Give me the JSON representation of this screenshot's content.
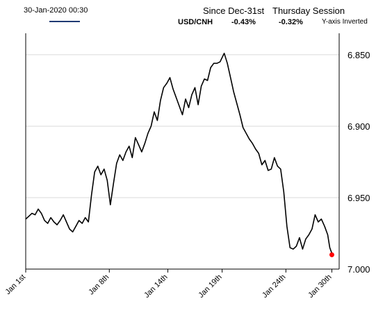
{
  "header": {
    "timestamp": "30-Jan-2020 00:30",
    "since_label": "Since Dec-31st",
    "session_label": "Thursday Session",
    "pair_label": "USD/CNH",
    "since_value": "-0.43%",
    "session_value": "-0.32%",
    "axis_note": "Y-axis Inverted"
  },
  "colors": {
    "line": "#000000",
    "legend_line": "#1f3a73",
    "marker": "#ff0000",
    "grid": "#d9d9d9",
    "axis": "#000000"
  },
  "chart_data": {
    "type": "line",
    "title": "",
    "xlabel": "",
    "ylabel": "",
    "y_inverted": true,
    "ylim": [
      6.835,
      7.0
    ],
    "yticks": [
      6.85,
      6.9,
      6.95,
      7.0
    ],
    "ytick_labels": [
      "6.850",
      "6.900",
      "6.950",
      "7.000"
    ],
    "xlim": [
      0,
      30
    ],
    "xticks": [
      0,
      8,
      13.6,
      18.8,
      24.9,
      29.3
    ],
    "xtick_labels": [
      "Jan 1st",
      "Jan 8th",
      "Jan 14th",
      "Jan 19th",
      "Jan 24th",
      "Jan 30th"
    ],
    "grid": "horizontal",
    "legend": "none",
    "series": [
      {
        "x": [
          0,
          0.3,
          0.6,
          0.9,
          1.2,
          1.5,
          1.8,
          2.1,
          2.4,
          2.7,
          3.0,
          3.3,
          3.6,
          3.9,
          4.2,
          4.5,
          4.8,
          5.1,
          5.4,
          5.7,
          6.0,
          6.3,
          6.6,
          6.9,
          7.2,
          7.5,
          7.8,
          8.1,
          8.4,
          8.7,
          9.0,
          9.3,
          9.6,
          9.9,
          10.2,
          10.5,
          10.8,
          11.1,
          11.4,
          11.7,
          12.0,
          12.3,
          12.6,
          12.9,
          13.2,
          13.5,
          13.8,
          14.1,
          14.4,
          14.7,
          15.0,
          15.3,
          15.6,
          15.9,
          16.2,
          16.5,
          16.8,
          17.1,
          17.4,
          17.7,
          18.0,
          18.3,
          18.6,
          18.8,
          19.0,
          19.3,
          19.6,
          19.9,
          20.2,
          20.5,
          20.8,
          21.1,
          21.4,
          21.7,
          22.0,
          22.3,
          22.6,
          22.9,
          23.2,
          23.5,
          23.8,
          24.1,
          24.4,
          24.7,
          25.0,
          25.3,
          25.6,
          25.9,
          26.2,
          26.5,
          26.8,
          27.1,
          27.4,
          27.7,
          28.0,
          28.3,
          28.6,
          28.9,
          29.1,
          29.3
        ],
        "y": [
          6.965,
          6.963,
          6.961,
          6.962,
          6.958,
          6.961,
          6.966,
          6.968,
          6.964,
          6.967,
          6.969,
          6.966,
          6.962,
          6.967,
          6.972,
          6.974,
          6.97,
          6.966,
          6.968,
          6.964,
          6.967,
          6.948,
          6.932,
          6.928,
          6.934,
          6.93,
          6.938,
          6.955,
          6.94,
          6.926,
          6.92,
          6.924,
          6.918,
          6.914,
          6.922,
          6.908,
          6.913,
          6.918,
          6.912,
          6.905,
          6.9,
          6.89,
          6.896,
          6.882,
          6.873,
          6.87,
          6.866,
          6.874,
          6.88,
          6.886,
          6.892,
          6.881,
          6.887,
          6.878,
          6.873,
          6.885,
          6.872,
          6.867,
          6.868,
          6.859,
          6.856,
          6.856,
          6.855,
          6.852,
          6.849,
          6.856,
          6.866,
          6.876,
          6.884,
          6.892,
          6.901,
          6.905,
          6.909,
          6.912,
          6.916,
          6.919,
          6.927,
          6.924,
          6.931,
          6.93,
          6.922,
          6.928,
          6.93,
          6.946,
          6.97,
          6.985,
          6.986,
          6.984,
          6.978,
          6.986,
          6.979,
          6.976,
          6.972,
          6.962,
          6.967,
          6.965,
          6.97,
          6.976,
          6.985,
          6.989
        ]
      }
    ],
    "last_point": {
      "x": 29.3,
      "y": 6.99
    }
  }
}
